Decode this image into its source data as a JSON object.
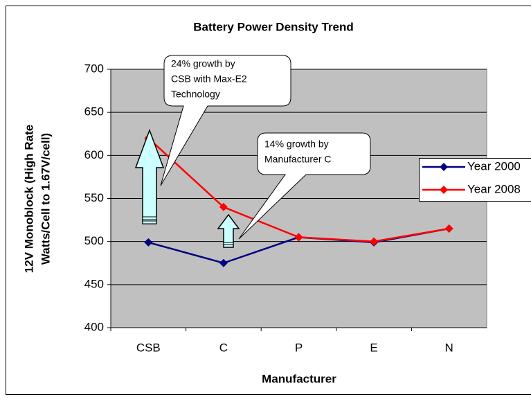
{
  "chart_data": {
    "type": "line",
    "title": "Battery Power Density Trend",
    "xlabel": "Manufacturer",
    "ylabel": [
      "12V Monoblock (High Rate",
      "Watts/Cell to 1.67V/cell)"
    ],
    "categories": [
      "CSB",
      "C",
      "P",
      "E",
      "N"
    ],
    "series": [
      {
        "name": "Year 2000",
        "color": "#000080",
        "values": [
          499,
          475,
          505,
          499,
          515
        ]
      },
      {
        "name": "Year 2008",
        "color": "#ff0000",
        "values": [
          620,
          540,
          505,
          500,
          515
        ]
      }
    ],
    "ylim": [
      400,
      700
    ],
    "yticks": [
      400,
      450,
      500,
      550,
      600,
      650,
      700
    ],
    "grid": true,
    "legend": "right",
    "annotations": [
      {
        "lines": [
          "24% growth by",
          "CSB with Max-E2",
          "Technology"
        ]
      },
      {
        "lines": [
          "14% growth by",
          "Manufacturer C"
        ]
      }
    ]
  }
}
